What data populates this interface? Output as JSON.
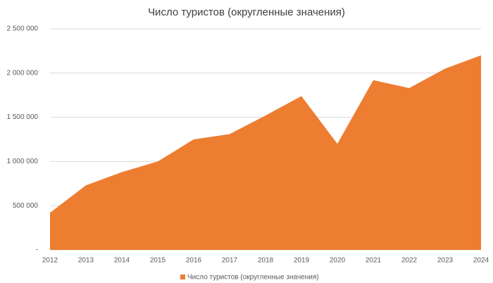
{
  "chart_data": {
    "type": "area",
    "title": "Число туристов (округленные значения)",
    "categories": [
      "2012",
      "2013",
      "2014",
      "2015",
      "2016",
      "2017",
      "2018",
      "2019",
      "2020",
      "2021",
      "2022",
      "2023",
      "2024"
    ],
    "series": [
      {
        "name": "Число туристов (округленные значения)",
        "color": "#ed7d31",
        "values": [
          420000,
          730000,
          880000,
          1000000,
          1250000,
          1310000,
          1520000,
          1740000,
          1200000,
          1920000,
          1830000,
          2050000,
          2200000
        ]
      }
    ],
    "ylim": [
      0,
      2500000
    ],
    "yticks": [
      {
        "value": 0,
        "label": "-"
      },
      {
        "value": 500000,
        "label": "500 000"
      },
      {
        "value": 1000000,
        "label": "1 000 000"
      },
      {
        "value": 1500000,
        "label": "1 500 000"
      },
      {
        "value": 2000000,
        "label": "2 000 000"
      },
      {
        "value": 2500000,
        "label": "2 500 000"
      }
    ],
    "grid": true,
    "legend": "bottom"
  }
}
